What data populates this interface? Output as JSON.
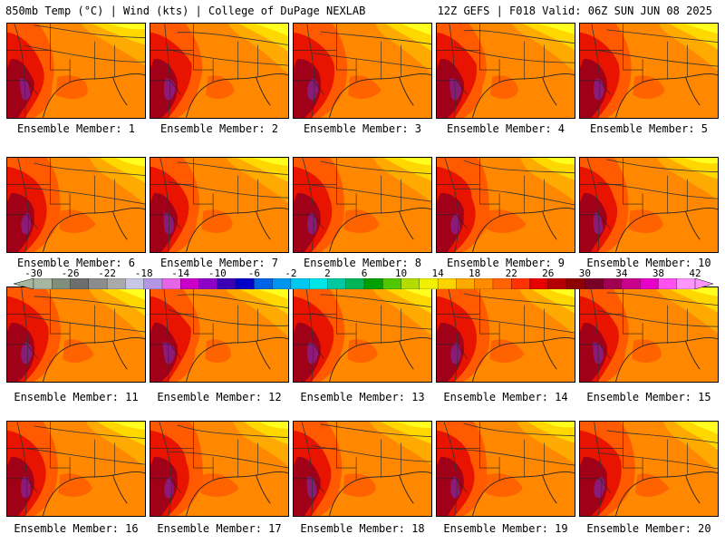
{
  "header": {
    "left": "850mb Temp (°C) | Wind (kts) | College of DuPage NEXLAB",
    "right": "12Z GEFS | F018 Valid: 06Z SUN JUN 08 2025"
  },
  "members": [
    {
      "label": "Ensemble Member: 1"
    },
    {
      "label": "Ensemble Member: 2"
    },
    {
      "label": "Ensemble Member: 3"
    },
    {
      "label": "Ensemble Member: 4"
    },
    {
      "label": "Ensemble Member: 5"
    },
    {
      "label": "Ensemble Member: 6"
    },
    {
      "label": "Ensemble Member: 7"
    },
    {
      "label": "Ensemble Member: 8"
    },
    {
      "label": "Ensemble Member: 9"
    },
    {
      "label": "Ensemble Member: 10"
    },
    {
      "label": "Ensemble Member: 11"
    },
    {
      "label": "Ensemble Member: 12"
    },
    {
      "label": "Ensemble Member: 13"
    },
    {
      "label": "Ensemble Member: 14"
    },
    {
      "label": "Ensemble Member: 15"
    },
    {
      "label": "Ensemble Member: 16"
    },
    {
      "label": "Ensemble Member: 17"
    },
    {
      "label": "Ensemble Member: 18"
    },
    {
      "label": "Ensemble Member: 19"
    },
    {
      "label": "Ensemble Member: 20"
    }
  ],
  "colorbar": {
    "ticks": [
      "-30",
      "-26",
      "-22",
      "-18",
      "-14",
      "-10",
      "-6",
      "-2",
      "2",
      "6",
      "10",
      "14",
      "18",
      "22",
      "26",
      "30",
      "34",
      "38",
      "42"
    ],
    "colors": [
      "#a6b6a0",
      "#7f8f7c",
      "#6e6e6e",
      "#8c8c8c",
      "#aaaaaa",
      "#c8c8e6",
      "#b496e6",
      "#e664e6",
      "#c800c8",
      "#8c00c8",
      "#3c00b4",
      "#0000c8",
      "#0064e6",
      "#0096f0",
      "#00c8f0",
      "#00e6e6",
      "#00c8a0",
      "#00b45a",
      "#00a000",
      "#50c800",
      "#b4dc00",
      "#f0f000",
      "#ffd200",
      "#ffaa00",
      "#ff8c00",
      "#ff6400",
      "#ff3200",
      "#e60000",
      "#b40000",
      "#8c0000",
      "#780028",
      "#a00050",
      "#c8008c",
      "#e600c8",
      "#ff50f0",
      "#ff96ff"
    ]
  },
  "map_colors": {
    "base": "#ff8800",
    "warm": "#ff5a00",
    "hot": "#e81400",
    "dark": "#a00018",
    "purple": "#8c1a78",
    "yellow": "#ffd800",
    "lightyellow": "#ffff20",
    "amber": "#ffaa00"
  }
}
